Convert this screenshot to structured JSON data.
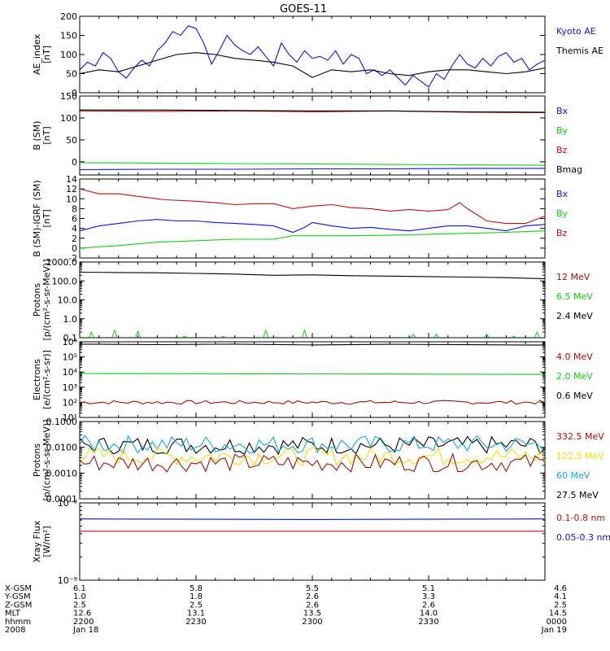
{
  "title": "GOES-11",
  "colors": {
    "black": "#000000",
    "blue": "#1010e0",
    "green": "#10d010",
    "red": "#c01010",
    "darkred": "#a01010",
    "cyan": "#10a8e0",
    "yellow": "#f0e000"
  },
  "chart_data": [
    {
      "type": "line",
      "ylabel": [
        "AE_index",
        "[nT]"
      ],
      "yticks": [
        0,
        50,
        100,
        150,
        200
      ],
      "tick_labels": [
        "0",
        "50",
        "100",
        "150",
        "200"
      ],
      "ylim": [
        0,
        200
      ],
      "scale": "linear",
      "legend": [
        {
          "label": "Kyoto AE",
          "color": "#1010e0"
        },
        {
          "label": "Themis AE",
          "color": "#000000"
        }
      ],
      "series": [
        {
          "name": "Kyoto AE",
          "color": "#1010e0",
          "kind": "line",
          "x": [
            0,
            2,
            4,
            6,
            8,
            10,
            12,
            14,
            16,
            18,
            20,
            22,
            24,
            26,
            28,
            30,
            32,
            34,
            36,
            38,
            40,
            42,
            44,
            46,
            48,
            50,
            52,
            54,
            56,
            58,
            60,
            62,
            64,
            66,
            68,
            70,
            72,
            74,
            76,
            78,
            80,
            82,
            84,
            86,
            88,
            90,
            92,
            94,
            96,
            98,
            100,
            102,
            104,
            106,
            108,
            110,
            112,
            114,
            116,
            118,
            120
          ],
          "y": [
            60,
            80,
            70,
            105,
            90,
            55,
            38,
            65,
            85,
            70,
            110,
            130,
            160,
            150,
            175,
            168,
            130,
            75,
            110,
            150,
            125,
            110,
            100,
            120,
            95,
            70,
            130,
            100,
            80,
            110,
            90,
            95,
            85,
            110,
            75,
            100,
            90,
            50,
            60,
            45,
            60,
            40,
            20,
            45,
            30,
            15,
            50,
            35,
            70,
            100,
            75,
            65,
            90,
            70,
            95,
            105,
            80,
            90,
            60,
            75,
            85
          ]
        },
        {
          "name": "Themis AE",
          "color": "#000000",
          "kind": "line",
          "x": [
            0,
            5,
            10,
            15,
            20,
            25,
            30,
            35,
            40,
            45,
            50,
            55,
            60,
            65,
            70,
            75,
            80,
            85,
            90,
            95,
            100,
            105,
            110,
            115,
            120
          ],
          "y": [
            50,
            60,
            55,
            70,
            85,
            100,
            105,
            100,
            90,
            85,
            80,
            70,
            40,
            60,
            55,
            60,
            50,
            45,
            55,
            60,
            60,
            55,
            50,
            55,
            65
          ]
        }
      ]
    },
    {
      "type": "line",
      "ylabel": [
        "B (SM)",
        "[nT]"
      ],
      "yticks": [
        0,
        50,
        100,
        150
      ],
      "tick_labels": [
        "0",
        "50",
        "100",
        "150"
      ],
      "ylim": [
        -30,
        150
      ],
      "scale": "linear",
      "legend": [
        {
          "label": "Bx",
          "color": "#1010e0"
        },
        {
          "label": "By",
          "color": "#10d010"
        },
        {
          "label": "Bz",
          "color": "#c01010"
        },
        {
          "label": "Bmag",
          "color": "#000000"
        }
      ],
      "series": [
        {
          "name": "Bx",
          "color": "#1010e0",
          "kind": "line",
          "x": [
            0,
            20,
            40,
            60,
            80,
            100,
            120
          ],
          "y": [
            -18,
            -17,
            -17,
            -16,
            -16,
            -15,
            -15
          ]
        },
        {
          "name": "By",
          "color": "#10d010",
          "kind": "line",
          "x": [
            0,
            20,
            40,
            60,
            80,
            100,
            120
          ],
          "y": [
            -2,
            -3,
            -4,
            -5,
            -6,
            -7,
            -8
          ]
        },
        {
          "name": "Bz",
          "color": "#c01010",
          "kind": "line",
          "x": [
            0,
            20,
            40,
            60,
            80,
            100,
            120
          ],
          "y": [
            116,
            115,
            116,
            114,
            116,
            113,
            112
          ]
        },
        {
          "name": "Bmag",
          "color": "#000000",
          "kind": "line",
          "x": [
            0,
            20,
            40,
            60,
            80,
            100,
            120
          ],
          "y": [
            118,
            118,
            117,
            116,
            116,
            114,
            113
          ]
        }
      ]
    },
    {
      "type": "line",
      "ylabel": [
        "B (SM)-IGRF (SM)",
        "[nT]"
      ],
      "yticks": [
        -2,
        0,
        2,
        4,
        6,
        8,
        10,
        12,
        14
      ],
      "tick_labels": [
        "-2",
        "0",
        "2",
        "4",
        "6",
        "8",
        "10",
        "12",
        "14"
      ],
      "ylim": [
        -2,
        14
      ],
      "scale": "linear",
      "legend": [
        {
          "label": "Bx",
          "color": "#1010e0"
        },
        {
          "label": "By",
          "color": "#10d010"
        },
        {
          "label": "Bz",
          "color": "#c01010"
        }
      ],
      "series": [
        {
          "name": "Bx",
          "color": "#1010e0",
          "kind": "line",
          "x": [
            0,
            5,
            10,
            15,
            20,
            25,
            30,
            35,
            40,
            45,
            50,
            55,
            58,
            60,
            65,
            70,
            75,
            80,
            85,
            90,
            95,
            100,
            105,
            110,
            115,
            120
          ],
          "y": [
            3.5,
            4.5,
            5,
            5.5,
            5.8,
            5.5,
            5.5,
            5.2,
            5,
            4.8,
            4.5,
            3.2,
            4.2,
            5.2,
            4.5,
            4,
            4.2,
            3.8,
            3.5,
            4,
            4.5,
            4.5,
            4,
            3.5,
            4.5,
            4.8
          ]
        },
        {
          "name": "By",
          "color": "#10d010",
          "kind": "line",
          "x": [
            0,
            10,
            20,
            30,
            40,
            50,
            55,
            60,
            70,
            80,
            90,
            100,
            110,
            120
          ],
          "y": [
            0,
            0.5,
            1.2,
            1.5,
            1.8,
            1.8,
            2.5,
            2.5,
            2.5,
            2.6,
            2.8,
            3,
            3.2,
            3.5
          ]
        },
        {
          "name": "Bz",
          "color": "#c01010",
          "kind": "line",
          "x": [
            0,
            5,
            10,
            20,
            22,
            30,
            35,
            40,
            45,
            50,
            55,
            60,
            65,
            70,
            75,
            80,
            85,
            90,
            95,
            98,
            100,
            105,
            110,
            115,
            120
          ],
          "y": [
            12,
            11,
            11,
            10,
            9.8,
            9.5,
            9.2,
            8.8,
            9,
            9,
            8,
            8.5,
            8.8,
            8.2,
            8,
            7.5,
            7.8,
            7.5,
            7.8,
            9.2,
            8,
            5.5,
            5,
            5,
            6.5
          ]
        }
      ]
    },
    {
      "type": "line",
      "ylabel": [
        "Protons",
        "[p/(cm²-s-sr-MeV)]"
      ],
      "yticks": [
        0.1,
        1,
        10,
        100,
        1000
      ],
      "tick_labels": [
        "0.1",
        "1.0",
        "10.0",
        "100.0",
        "1000.0"
      ],
      "ylim": [
        0.1,
        1000
      ],
      "scale": "log",
      "legend": [
        {
          "label": "12 MeV",
          "color": "#a01010"
        },
        {
          "label": "6.5 MeV",
          "color": "#10d010"
        },
        {
          "label": "2.4 MeV",
          "color": "#000000"
        }
      ],
      "series": [
        {
          "name": "2.4 MeV",
          "color": "#000000",
          "kind": "line",
          "x": [
            0,
            10,
            20,
            30,
            40,
            50,
            60,
            70,
            80,
            90,
            100,
            110,
            120
          ],
          "y": [
            290,
            280,
            270,
            250,
            230,
            200,
            210,
            190,
            180,
            170,
            160,
            150,
            130
          ]
        },
        {
          "name": "6.5 MeV",
          "color": "#10d010",
          "kind": "spikes",
          "x": [
            3,
            9,
            15,
            27,
            37,
            48,
            58,
            70,
            86,
            92,
            105,
            112,
            118
          ],
          "y": [
            0.2,
            0.25,
            0.22,
            0.12,
            0.12,
            0.25,
            0.25,
            0.12,
            0.15,
            0.15,
            0.15,
            0.12,
            0.2
          ]
        }
      ]
    },
    {
      "type": "line",
      "ylabel": [
        "Electrons",
        "[e/(cm²-s-sr)]"
      ],
      "yticks": [
        10,
        100,
        1000,
        10000,
        100000,
        1000000
      ],
      "tick_labels": [
        "10¹",
        "10²",
        "10³",
        "10⁴",
        "10⁵",
        "10⁶"
      ],
      "ylim": [
        10,
        1000000
      ],
      "scale": "log",
      "legend": [
        {
          "label": "4.0 MeV",
          "color": "#a01010"
        },
        {
          "label": "2.0 MeV",
          "color": "#10d010"
        },
        {
          "label": "0.6 MeV",
          "color": "#000000"
        }
      ],
      "series": [
        {
          "name": "0.6 MeV",
          "color": "#000000",
          "kind": "line",
          "x": [
            0,
            20,
            40,
            60,
            80,
            100,
            120
          ],
          "y": [
            700000,
            650000,
            700000,
            620000,
            680000,
            640000,
            600000
          ]
        },
        {
          "name": "2.0 MeV",
          "color": "#10d010",
          "kind": "line",
          "x": [
            0,
            20,
            40,
            60,
            80,
            100,
            120
          ],
          "y": [
            8000,
            7800,
            7600,
            7500,
            7400,
            7200,
            7000
          ]
        },
        {
          "name": "4.0 MeV",
          "color": "#a01010",
          "kind": "noisy",
          "x": [
            0,
            120
          ],
          "y": [
            100,
            100
          ]
        }
      ]
    },
    {
      "type": "line",
      "ylabel": [
        "Protons",
        "[p/(cm²-s-sr-MeV)]"
      ],
      "yticks": [
        0.0001,
        0.001,
        0.01,
        0.1
      ],
      "tick_labels": [
        "0.0001",
        "0.0010",
        "0.0100",
        "0.1000"
      ],
      "ylim": [
        0.0001,
        0.1
      ],
      "scale": "log",
      "legend": [
        {
          "label": "332.5 MeV",
          "color": "#a01010"
        },
        {
          "label": "122.5 MeV",
          "color": "#f0e000"
        },
        {
          "label": "60 MeV",
          "color": "#10a8e0"
        },
        {
          "label": "27.5 MeV",
          "color": "#000000"
        }
      ],
      "series": [
        {
          "name": "27.5 MeV",
          "color": "#000000",
          "kind": "noisy",
          "x": [
            0,
            120
          ],
          "y": [
            0.012,
            0.012
          ]
        },
        {
          "name": "60 MeV",
          "color": "#10a8e0",
          "kind": "noisy",
          "x": [
            0,
            120
          ],
          "y": [
            0.013,
            0.013
          ]
        },
        {
          "name": "122.5 MeV",
          "color": "#f0e000",
          "kind": "noisy",
          "x": [
            0,
            120
          ],
          "y": [
            0.0045,
            0.0045
          ]
        },
        {
          "name": "332.5 MeV",
          "color": "#a01010",
          "kind": "noisy",
          "x": [
            0,
            120
          ],
          "y": [
            0.0025,
            0.0025
          ]
        }
      ]
    },
    {
      "type": "line",
      "ylabel": [
        "Xray Flux",
        "[W/m²]"
      ],
      "yticks": [
        1e-09,
        1e-08
      ],
      "tick_labels": [
        "10⁻⁹",
        "10⁻⁸"
      ],
      "ylim": [
        1e-09,
        1e-08
      ],
      "scale": "log",
      "legend": [
        {
          "label": "0.1-0.8 nm",
          "color": "#c01010"
        },
        {
          "label": "0.05-0.3 nm",
          "color": "#1010e0"
        }
      ],
      "series": [
        {
          "name": "0.05-0.3 nm",
          "color": "#1010e0",
          "kind": "line",
          "x": [
            0,
            60,
            120
          ],
          "y": [
            6.2e-09,
            6.1e-09,
            6.2e-09
          ]
        },
        {
          "name": "0.1-0.8 nm",
          "color": "#c01010",
          "kind": "line",
          "x": [
            0,
            120
          ],
          "y": [
            4.3e-09,
            4.3e-09
          ]
        }
      ]
    }
  ],
  "x_axis": {
    "ticks": [
      0,
      30,
      60,
      90,
      120
    ],
    "row_labels": [
      "X-GSM",
      "Y-GSM",
      "Z-GSM",
      "MLT",
      "hhmm",
      "2008"
    ],
    "columns": [
      [
        "6.1",
        "1.0",
        "2.5",
        "12.6",
        "2200",
        "Jan 18"
      ],
      [
        "5.8",
        "1.8",
        "2.5",
        "13.1",
        "2230",
        ""
      ],
      [
        "5.5",
        "2.6",
        "2.6",
        "13.5",
        "2300",
        ""
      ],
      [
        "5.1",
        "3.3",
        "2.6",
        "14.0",
        "2330",
        ""
      ],
      [
        "4.6",
        "4.1",
        "2.5",
        "14.5",
        "0000",
        "Jan 19"
      ]
    ]
  }
}
